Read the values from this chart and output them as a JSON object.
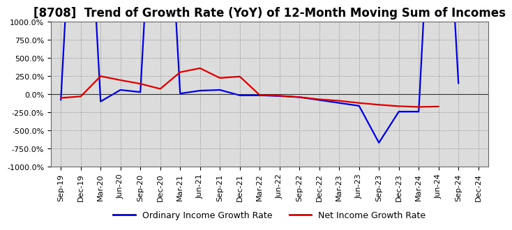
{
  "title": "[8708]  Trend of Growth Rate (YoY) of 12-Month Moving Sum of Incomes",
  "ylim": [
    -1000,
    1000
  ],
  "yticks": [
    -1000,
    -750,
    -500,
    -250,
    0,
    250,
    500,
    750,
    1000
  ],
  "ytick_labels": [
    "-1000.0%",
    "-750.0%",
    "-500.0%",
    "-250.0%",
    "0.0%",
    "250.0%",
    "500.0%",
    "750.0%",
    "1000.0%"
  ],
  "background_color": "#ffffff",
  "plot_bg_color": "#dcdcdc",
  "grid_color": "#888888",
  "line_color_ordinary": "#0000dd",
  "line_color_net": "#dd0000",
  "legend_ordinary": "Ordinary Income Growth Rate",
  "legend_net": "Net Income Growth Rate",
  "x_labels": [
    "Sep-19",
    "Dec-19",
    "Mar-20",
    "Jun-20",
    "Sep-20",
    "Dec-20",
    "Mar-21",
    "Jun-21",
    "Sep-21",
    "Dec-21",
    "Mar-22",
    "Jun-22",
    "Sep-22",
    "Dec-22",
    "Mar-23",
    "Jun-23",
    "Sep-23",
    "Dec-23",
    "Mar-24",
    "Jun-24",
    "Sep-24",
    "Dec-24"
  ],
  "ordinary_income": [
    -80,
    5000,
    -100,
    60,
    30,
    5000,
    10,
    50,
    60,
    -15,
    -15,
    -25,
    -40,
    -80,
    -120,
    -160,
    -670,
    -240,
    -240,
    5000,
    150,
    null
  ],
  "net_income": [
    -50,
    -30,
    250,
    195,
    145,
    75,
    305,
    360,
    225,
    245,
    -10,
    -20,
    -40,
    -70,
    -90,
    -120,
    -145,
    -165,
    -175,
    -170,
    null,
    null
  ],
  "title_fontsize": 12,
  "tick_fontsize": 8
}
